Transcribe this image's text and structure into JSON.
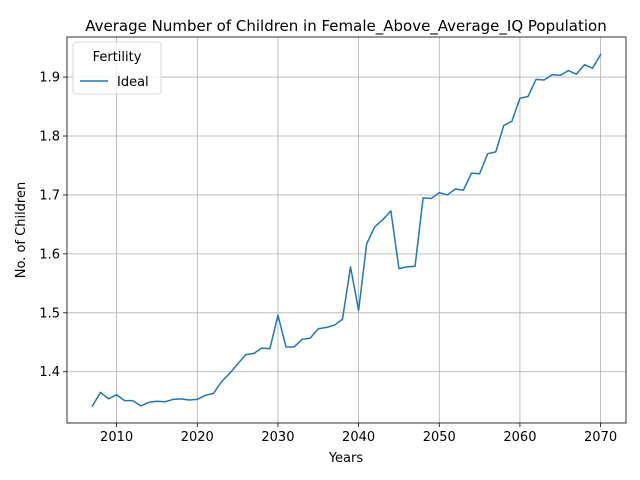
{
  "chart_data": {
    "type": "line",
    "title": "Average Number of Children in Female_Above_Average_IQ Population",
    "xlabel": "Years",
    "ylabel": "No. of Children",
    "xlim": [
      2003.85,
      2073.15
    ],
    "ylim": [
      1.313,
      1.968
    ],
    "xticks": [
      2010,
      2020,
      2030,
      2040,
      2050,
      2060,
      2070
    ],
    "yticks": [
      1.4,
      1.5,
      1.6,
      1.7,
      1.8,
      1.9
    ],
    "xtick_labels": [
      "2010",
      "2020",
      "2030",
      "2040",
      "2050",
      "2060",
      "2070"
    ],
    "ytick_labels": [
      "1.4",
      "1.5",
      "1.6",
      "1.7",
      "1.8",
      "1.9"
    ],
    "grid": true,
    "legend": {
      "title": "Fertility",
      "placement": "top-left",
      "entries": [
        "Ideal"
      ]
    },
    "series": [
      {
        "name": "Ideal",
        "color": "#1f77b4",
        "x": [
          2007,
          2008,
          2009,
          2010,
          2011,
          2012,
          2013,
          2014,
          2015,
          2016,
          2017,
          2018,
          2019,
          2020,
          2021,
          2022,
          2023,
          2024,
          2025,
          2026,
          2027,
          2028,
          2029,
          2030,
          2031,
          2032,
          2033,
          2034,
          2035,
          2036,
          2037,
          2038,
          2039,
          2040,
          2041,
          2042,
          2043,
          2044,
          2045,
          2046,
          2047,
          2048,
          2049,
          2050,
          2051,
          2052,
          2053,
          2054,
          2055,
          2056,
          2057,
          2058,
          2059,
          2060,
          2061,
          2062,
          2063,
          2064,
          2065,
          2066,
          2067,
          2068,
          2069,
          2070
        ],
        "y": [
          1.342,
          1.365,
          1.354,
          1.361,
          1.351,
          1.351,
          1.342,
          1.348,
          1.35,
          1.349,
          1.353,
          1.354,
          1.352,
          1.353,
          1.36,
          1.363,
          1.383,
          1.397,
          1.413,
          1.429,
          1.431,
          1.44,
          1.439,
          1.496,
          1.442,
          1.442,
          1.455,
          1.457,
          1.473,
          1.475,
          1.479,
          1.489,
          1.578,
          1.504,
          1.617,
          1.646,
          1.658,
          1.673,
          1.575,
          1.578,
          1.579,
          1.695,
          1.694,
          1.704,
          1.7,
          1.71,
          1.708,
          1.737,
          1.736,
          1.77,
          1.773,
          1.818,
          1.825,
          1.864,
          1.867,
          1.896,
          1.895,
          1.904,
          1.903,
          1.911,
          1.905,
          1.921,
          1.915,
          1.938
        ]
      }
    ]
  }
}
